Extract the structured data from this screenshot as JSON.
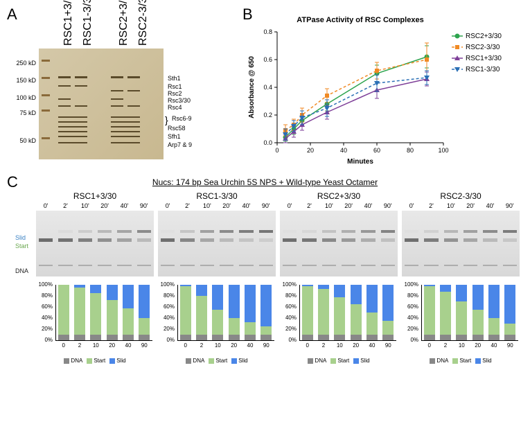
{
  "panelA": {
    "label": "A",
    "lanes": [
      "RSC1+3/30",
      "RSC1-3/30",
      "RSC2+3/30",
      "RSC2-3/30"
    ],
    "mw_markers": [
      "250 kD",
      "150 kD",
      "100 kD",
      "75 kD",
      "50 kD"
    ],
    "band_labels": [
      "Sth1",
      "Rsc1",
      "Rsc2",
      "Rsc3/30",
      "Rsc4",
      "Rsc6-9",
      "Rsc58",
      "Sfh1",
      "Arp7 & 9"
    ],
    "gel_bg_color": "#d4c8a8",
    "band_color": "#5a4a2a",
    "ladder_color": "#8a6a3a"
  },
  "panelB": {
    "label": "B",
    "title": "ATPase Activity of RSC Complexes",
    "ylabel": "Absorbance @ 650",
    "xlabel": "Minutes",
    "xlim": [
      0,
      100
    ],
    "ylim": [
      0.0,
      0.8
    ],
    "xticks": [
      0,
      20,
      40,
      60,
      80,
      100
    ],
    "yticks": [
      0.0,
      0.2,
      0.4,
      0.6,
      0.8
    ],
    "title_fontsize": 11,
    "label_fontsize": 10,
    "tick_fontsize": 9,
    "series": [
      {
        "name": "RSC2+3/30",
        "color": "#2da44e",
        "marker": "circle",
        "dash": "solid",
        "x": [
          5,
          10,
          15,
          30,
          60,
          90
        ],
        "y": [
          0.04,
          0.1,
          0.16,
          0.28,
          0.5,
          0.62
        ],
        "err": [
          0.03,
          0.04,
          0.04,
          0.05,
          0.06,
          0.08
        ]
      },
      {
        "name": "RSC2-3/30",
        "color": "#f08a24",
        "marker": "square",
        "dash": "dashed",
        "x": [
          5,
          10,
          15,
          30,
          60,
          90
        ],
        "y": [
          0.09,
          0.13,
          0.2,
          0.34,
          0.52,
          0.6
        ],
        "err": [
          0.04,
          0.04,
          0.05,
          0.05,
          0.06,
          0.12
        ]
      },
      {
        "name": "RSC1+3/30",
        "color": "#7e3f98",
        "marker": "triangle",
        "dash": "solid",
        "x": [
          5,
          10,
          15,
          30,
          60,
          90
        ],
        "y": [
          0.03,
          0.08,
          0.13,
          0.22,
          0.38,
          0.46
        ],
        "err": [
          0.03,
          0.04,
          0.04,
          0.05,
          0.06,
          0.05
        ]
      },
      {
        "name": "RSC1-3/30",
        "color": "#2a6fb5",
        "marker": "invtriangle",
        "dash": "dashed",
        "x": [
          5,
          10,
          15,
          30,
          60,
          90
        ],
        "y": [
          0.06,
          0.12,
          0.18,
          0.25,
          0.43,
          0.47
        ],
        "err": [
          0.04,
          0.04,
          0.05,
          0.06,
          0.06,
          0.05
        ]
      }
    ]
  },
  "panelC": {
    "label": "C",
    "title": "Nucs: 174 bp Sea Urchin 5S NPS + Wild-type Yeast Octamer",
    "side_labels": {
      "slid": "Slid",
      "start": "Start",
      "dna": "DNA"
    },
    "side_colors": {
      "slid": "#3b82c4",
      "start": "#6aa84f",
      "dna": "#222222"
    },
    "timepoints": [
      "0'",
      "2'",
      "10'",
      "20'",
      "40'",
      "90'"
    ],
    "bar_x": [
      0,
      2,
      10,
      20,
      40,
      90
    ],
    "bar_y_ticks": [
      0,
      20,
      40,
      60,
      80,
      100
    ],
    "bar_legend": [
      "DNA",
      "Start",
      "Slid"
    ],
    "bar_colors": {
      "DNA": "#888888",
      "Start": "#a8d08d",
      "Slid": "#4a86e8"
    },
    "subpanels": [
      {
        "title": "RSC1+3/30",
        "bars": [
          {
            "DNA": 10,
            "Start": 90,
            "Slid": 0
          },
          {
            "DNA": 10,
            "Start": 85,
            "Slid": 5
          },
          {
            "DNA": 10,
            "Start": 75,
            "Slid": 15
          },
          {
            "DNA": 10,
            "Start": 62,
            "Slid": 28
          },
          {
            "DNA": 10,
            "Start": 48,
            "Slid": 42
          },
          {
            "DNA": 10,
            "Start": 30,
            "Slid": 60
          }
        ]
      },
      {
        "title": "RSC1-3/30",
        "bars": [
          {
            "DNA": 10,
            "Start": 88,
            "Slid": 2
          },
          {
            "DNA": 10,
            "Start": 70,
            "Slid": 20
          },
          {
            "DNA": 10,
            "Start": 45,
            "Slid": 45
          },
          {
            "DNA": 10,
            "Start": 30,
            "Slid": 60
          },
          {
            "DNA": 10,
            "Start": 22,
            "Slid": 68
          },
          {
            "DNA": 10,
            "Start": 15,
            "Slid": 75
          }
        ]
      },
      {
        "title": "RSC2+3/30",
        "bars": [
          {
            "DNA": 10,
            "Start": 88,
            "Slid": 2
          },
          {
            "DNA": 10,
            "Start": 82,
            "Slid": 8
          },
          {
            "DNA": 10,
            "Start": 68,
            "Slid": 22
          },
          {
            "DNA": 10,
            "Start": 55,
            "Slid": 35
          },
          {
            "DNA": 10,
            "Start": 40,
            "Slid": 50
          },
          {
            "DNA": 10,
            "Start": 25,
            "Slid": 65
          }
        ]
      },
      {
        "title": "RSC2-3/30",
        "bars": [
          {
            "DNA": 10,
            "Start": 88,
            "Slid": 2
          },
          {
            "DNA": 10,
            "Start": 78,
            "Slid": 12
          },
          {
            "DNA": 10,
            "Start": 60,
            "Slid": 30
          },
          {
            "DNA": 10,
            "Start": 45,
            "Slid": 45
          },
          {
            "DNA": 10,
            "Start": 30,
            "Slid": 60
          },
          {
            "DNA": 10,
            "Start": 20,
            "Slid": 70
          }
        ]
      }
    ]
  }
}
